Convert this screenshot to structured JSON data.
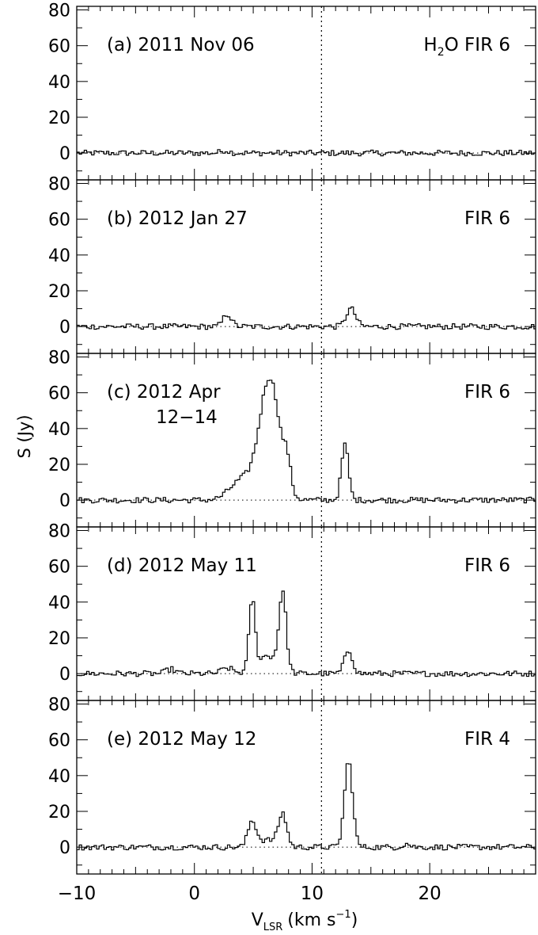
{
  "chart_data": {
    "type": "line",
    "xlabel_main": "V",
    "xlabel_sub": "LSR",
    "xlabel_unit_pre": "(km s",
    "xlabel_unit_sup": "−1",
    "xlabel_unit_post": ")",
    "ylabel": "S (Jy)",
    "xlim": [
      -10,
      29
    ],
    "ylim": [
      -15,
      82
    ],
    "xticks": [
      -10,
      0,
      10,
      20
    ],
    "xtick_labels": [
      "−10",
      "0",
      "10",
      "20"
    ],
    "yticks": [
      0,
      20,
      40,
      60,
      80
    ],
    "ytick_labels": [
      "0",
      "20",
      "40",
      "60",
      "80"
    ],
    "reference_velocity": 10.8,
    "panels": [
      {
        "id": "a",
        "date_label": "(a) 2011 Nov 06",
        "date_label_line2": "",
        "source_prefix": "H",
        "source_sub": "2",
        "source_label": "O FIR 6",
        "peaks": [
          {
            "v": 2.6,
            "amp": 1.5,
            "w": 0.35
          }
        ]
      },
      {
        "id": "b",
        "date_label": "(b) 2012 Jan 27",
        "date_label_line2": "",
        "source_prefix": "",
        "source_sub": "",
        "source_label": "FIR 6",
        "peaks": [
          {
            "v": 2.8,
            "amp": 7,
            "w": 0.35
          },
          {
            "v": 13.3,
            "amp": 10,
            "w": 0.4
          }
        ]
      },
      {
        "id": "c",
        "date_label": "(c) 2012 Apr",
        "date_label_line2": "12−14",
        "source_prefix": "",
        "source_sub": "",
        "source_label": "FIR 6",
        "peaks": [
          {
            "v": 6.4,
            "amp": 68,
            "w": 0.85
          },
          {
            "v": 4.3,
            "amp": 10,
            "w": 0.9
          },
          {
            "v": 7.9,
            "amp": 14,
            "w": 0.3
          },
          {
            "v": 3.2,
            "amp": 3,
            "w": 0.8
          },
          {
            "v": 12.8,
            "amp": 31,
            "w": 0.3
          }
        ]
      },
      {
        "id": "d",
        "date_label": "(d) 2012 May 11",
        "date_label_line2": "",
        "source_prefix": "",
        "source_sub": "",
        "source_label": "FIR 6",
        "peaks": [
          {
            "v": 4.9,
            "amp": 39,
            "w": 0.25
          },
          {
            "v": 7.5,
            "amp": 43,
            "w": 0.3
          },
          {
            "v": 6.2,
            "amp": 10,
            "w": 0.9
          },
          {
            "v": 2.8,
            "amp": 3,
            "w": 0.5
          },
          {
            "v": 13.1,
            "amp": 13,
            "w": 0.35
          },
          {
            "v": -2,
            "amp": 2.5,
            "w": 0.4
          }
        ]
      },
      {
        "id": "e",
        "date_label": "(e) 2012 May 12",
        "date_label_line2": "",
        "source_prefix": "",
        "source_sub": "",
        "source_label": "FIR 4",
        "peaks": [
          {
            "v": 4.9,
            "amp": 14,
            "w": 0.35
          },
          {
            "v": 7.5,
            "amp": 18,
            "w": 0.35
          },
          {
            "v": 6.2,
            "amp": 4,
            "w": 0.8
          },
          {
            "v": 13.1,
            "amp": 48,
            "w": 0.35
          },
          {
            "v": 18,
            "amp": 2,
            "w": 0.3
          }
        ]
      }
    ]
  }
}
